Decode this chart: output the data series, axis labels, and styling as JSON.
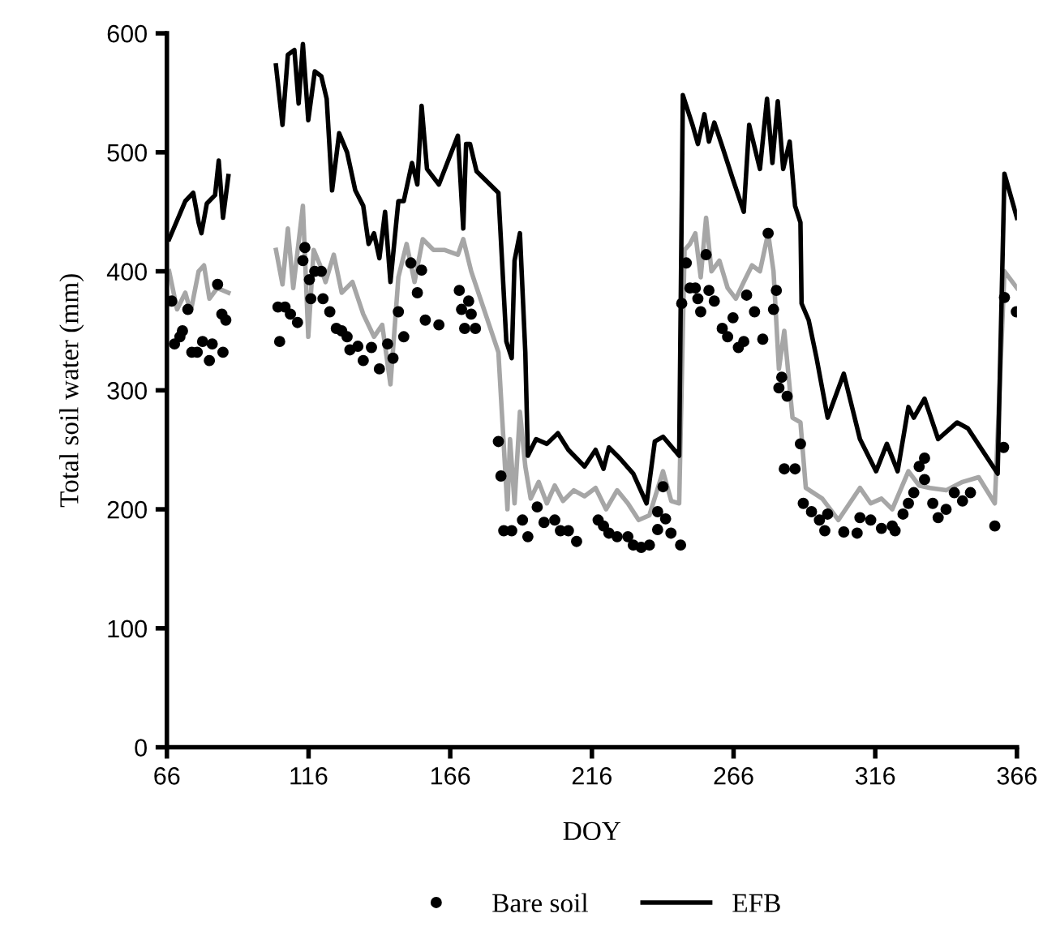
{
  "chart_data": {
    "type": "line",
    "xlabel": "DOY",
    "ylabel": "Total soil water (mm)",
    "xlim": [
      66,
      366
    ],
    "xticks": [
      66,
      116,
      166,
      216,
      266,
      316,
      366
    ],
    "ylim": [
      0,
      600
    ],
    "yticks": [
      0,
      100,
      200,
      300,
      400,
      500,
      600
    ],
    "grid": false,
    "legend": "bottom",
    "line_style": "solid",
    "series": [
      {
        "name": "Bare soil",
        "type": "scatter",
        "marker": "circle",
        "color": "#000000",
        "x": [
          67.7,
          68.7,
          70.6,
          71.5,
          73.4,
          74.8,
          76.7,
          78.6,
          81,
          82,
          83.9,
          85.4,
          86.8,
          85.8,
          105.2,
          105.8,
          107.7,
          109.6,
          112.1,
          114,
          114.7,
          116.3,
          116.8,
          118.2,
          120.5,
          121.1,
          123.5,
          125.8,
          127.7,
          129.6,
          130.6,
          133.4,
          135.3,
          138.2,
          141,
          143.9,
          145.8,
          147.7,
          149.6,
          152.1,
          154.4,
          155.9,
          157.2,
          162,
          169.2,
          170,
          172.5,
          173.4,
          171.1,
          174.9,
          183,
          183.9,
          184.9,
          187.7,
          191.5,
          193.4,
          196.7,
          199.1,
          202.9,
          204.9,
          207.7,
          210.6,
          218.2,
          220.1,
          222,
          224.9,
          228.7,
          230.6,
          233.4,
          236.3,
          239.2,
          241.1,
          242,
          239.2,
          243.9,
          247.3,
          247.7,
          249.3,
          250.6,
          252.5,
          253.4,
          254.4,
          256.3,
          257.3,
          259.2,
          262,
          263.9,
          265.8,
          267.7,
          269.6,
          270.6,
          273.4,
          276.3,
          278.2,
          280.1,
          281.1,
          283,
          282,
          284.9,
          289.6,
          283.9,
          287.7,
          290.6,
          293.5,
          296.3,
          299.2,
          298.2,
          304.9,
          309.6,
          310.6,
          314.4,
          318.2,
          322,
          323,
          325.8,
          327.7,
          329.6,
          331.5,
          333.4,
          333.4,
          336.3,
          338.2,
          341,
          343.9,
          346.8,
          349.6,
          358.2,
          361.3,
          361.6,
          365.8
        ],
        "values": [
          375,
          339,
          345,
          350,
          368,
          332,
          332,
          341,
          325,
          339,
          389,
          364,
          359,
          332,
          370,
          341,
          370,
          364,
          357,
          409,
          420,
          393,
          377,
          400,
          400,
          377,
          366,
          352,
          350,
          345,
          334,
          337,
          325,
          336,
          318,
          339,
          327,
          366,
          345,
          407,
          382,
          401,
          359,
          355,
          384,
          368,
          375,
          364,
          352,
          352,
          257,
          228,
          182,
          182,
          191,
          177,
          202,
          189,
          191,
          182,
          182,
          173,
          191,
          186,
          180,
          177,
          177,
          170,
          168,
          170,
          198,
          219,
          192,
          183,
          180,
          170,
          373,
          407,
          386,
          386,
          377,
          366,
          414,
          384,
          375,
          352,
          345,
          361,
          336,
          341,
          380,
          366,
          343,
          432,
          368,
          384,
          311,
          302,
          295,
          255,
          234,
          234,
          205,
          198,
          191,
          196,
          182,
          181,
          180,
          193,
          191,
          184,
          186,
          182,
          196,
          205,
          214,
          236,
          243,
          225,
          205,
          193,
          200,
          214,
          207,
          214,
          186,
          252,
          378,
          366
        ]
      },
      {
        "name": "EFB",
        "color": "#000000",
        "x": [
          66.8,
          72.5,
          75.3,
          77.2,
          78.2,
          80.1,
          83,
          84.3,
          85.8,
          87.7,
          96,
          104.5,
          106.8,
          108.7,
          111,
          112.5,
          114,
          115.9,
          118.2,
          120.5,
          122.4,
          124.3,
          126.8,
          129.6,
          132.5,
          135.3,
          137.2,
          139.1,
          141,
          143,
          144.9,
          147.7,
          149.6,
          152.5,
          154.4,
          155.9,
          157.8,
          162,
          168.7,
          170.6,
          171.6,
          173,
          175.3,
          183,
          185.8,
          187.7,
          188.7,
          190.6,
          192.5,
          193.4,
          196.3,
          200.1,
          204,
          207.7,
          213.4,
          217.3,
          220.1,
          222,
          225.8,
          230.6,
          235.3,
          238.2,
          241.1,
          246.8,
          248.1,
          251.5,
          253.4,
          255.7,
          257.3,
          259.2,
          262,
          265.8,
          269.6,
          271.5,
          275.3,
          277.8,
          279.7,
          281.6,
          283.5,
          285.8,
          287.7,
          289.6,
          290,
          292.5,
          295.3,
          299.2,
          304.9,
          310.6,
          316.3,
          320.1,
          323.9,
          327.7,
          329.6,
          333.4,
          338.2,
          344.9,
          348.7,
          359.2,
          361.6,
          366
        ],
        "values": [
          427,
          459,
          466,
          441,
          432,
          457,
          464,
          493,
          445,
          480,
          null,
          573,
          523,
          582,
          586,
          541,
          591,
          527,
          568,
          564,
          545,
          468,
          516,
          500,
          468,
          455,
          423,
          432,
          411,
          450,
          391,
          459,
          459,
          491,
          473,
          539,
          486,
          473,
          514,
          436,
          507,
          507,
          484,
          466,
          341,
          327,
          409,
          432,
          332,
          245,
          259,
          255,
          264,
          250,
          236,
          250,
          234,
          252,
          243,
          230,
          205,
          257,
          261,
          245,
          548,
          523,
          507,
          532,
          509,
          525,
          505,
          477,
          450,
          523,
          486,
          545,
          491,
          543,
          486,
          509,
          455,
          441,
          373,
          359,
          327,
          277,
          314,
          259,
          232,
          255,
          232,
          286,
          277,
          293,
          259,
          273,
          268,
          230,
          482,
          445
        ]
      },
      {
        "color": "#a6a6a6",
        "x": [
          66.8,
          69.6,
          72.5,
          74.4,
          77.2,
          79.1,
          81,
          83.8,
          87.7,
          96,
          104.5,
          106.8,
          108.7,
          110.6,
          114,
          115.9,
          117.8,
          120.1,
          122,
          124.9,
          127.7,
          131.5,
          135.3,
          139.1,
          142,
          144.9,
          147.7,
          150.6,
          153.4,
          156.3,
          160.1,
          163.9,
          168.7,
          170.6,
          173.4,
          183,
          186.2,
          187.1,
          188.7,
          190.6,
          192.5,
          194.4,
          197.2,
          200.1,
          202.9,
          205.8,
          209.6,
          213.4,
          217.3,
          221,
          224.9,
          228.7,
          232.5,
          236.3,
          241.1,
          244,
          246.8,
          248.7,
          250.6,
          252.5,
          254.4,
          256.3,
          258.2,
          261,
          263.9,
          266.8,
          269.6,
          272.5,
          275.3,
          278.2,
          280.1,
          282,
          283.9,
          286.8,
          289.6,
          291.5,
          297.3,
          303,
          310.6,
          314.4,
          318.2,
          322,
          327.7,
          331.5,
          335.3,
          341,
          346.8,
          352.5,
          358.2,
          361.6,
          366
        ],
        "values": [
          400,
          368,
          382,
          366,
          400,
          405,
          377,
          386,
          382,
          null,
          418,
          389,
          436,
          386,
          455,
          345,
          418,
          405,
          391,
          414,
          382,
          391,
          364,
          345,
          355,
          305,
          395,
          423,
          391,
          427,
          418,
          418,
          414,
          427,
          400,
          332,
          200,
          259,
          205,
          282,
          236,
          209,
          223,
          205,
          220,
          207,
          216,
          211,
          218,
          200,
          216,
          205,
          191,
          195,
          232,
          207,
          205,
          418,
          423,
          432,
          395,
          445,
          400,
          409,
          386,
          377,
          391,
          405,
          400,
          432,
          400,
          318,
          350,
          277,
          273,
          218,
          209,
          191,
          218,
          205,
          209,
          200,
          232,
          220,
          218,
          216,
          223,
          227,
          205,
          400,
          386
        ]
      }
    ]
  }
}
